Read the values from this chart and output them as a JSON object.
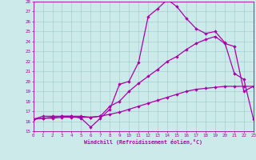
{
  "xlabel": "Windchill (Refroidissement éolien,°C)",
  "xlim": [
    0,
    23
  ],
  "ylim": [
    15,
    28
  ],
  "xticks": [
    0,
    1,
    2,
    3,
    4,
    5,
    6,
    7,
    8,
    9,
    10,
    11,
    12,
    13,
    14,
    15,
    16,
    17,
    18,
    19,
    20,
    21,
    22,
    23
  ],
  "yticks": [
    15,
    16,
    17,
    18,
    19,
    20,
    21,
    22,
    23,
    24,
    25,
    26,
    27,
    28
  ],
  "bg_color": "#cdeaea",
  "line_color": "#aa00aa",
  "grid_color": "#9ec8c8",
  "line1_x": [
    0,
    1,
    2,
    3,
    4,
    5,
    6,
    7,
    8,
    9,
    10,
    11,
    12,
    13,
    14,
    15,
    16,
    17,
    18,
    19,
    20,
    21,
    22,
    23
  ],
  "line1_y": [
    16.2,
    16.5,
    16.5,
    16.5,
    16.5,
    16.3,
    15.4,
    16.3,
    17.2,
    19.7,
    20.0,
    21.9,
    26.5,
    27.3,
    28.2,
    27.5,
    26.3,
    25.3,
    24.8,
    25.0,
    23.9,
    20.8,
    20.2,
    16.2
  ],
  "line2_x": [
    0,
    1,
    2,
    3,
    4,
    5,
    6,
    7,
    8,
    9,
    10,
    11,
    12,
    13,
    14,
    15,
    16,
    17,
    18,
    19,
    20,
    21,
    22,
    23
  ],
  "line2_y": [
    16.2,
    16.3,
    16.4,
    16.5,
    16.5,
    16.5,
    16.4,
    16.5,
    17.5,
    18.0,
    19.0,
    19.8,
    20.5,
    21.2,
    22.0,
    22.5,
    23.2,
    23.8,
    24.2,
    24.5,
    23.8,
    23.5,
    19.0,
    19.5
  ],
  "line3_x": [
    0,
    1,
    2,
    3,
    4,
    5,
    6,
    7,
    8,
    9,
    10,
    11,
    12,
    13,
    14,
    15,
    16,
    17,
    18,
    19,
    20,
    21,
    22,
    23
  ],
  "line3_y": [
    16.2,
    16.3,
    16.3,
    16.4,
    16.4,
    16.4,
    16.4,
    16.5,
    16.7,
    16.9,
    17.2,
    17.5,
    17.8,
    18.1,
    18.4,
    18.7,
    19.0,
    19.2,
    19.3,
    19.4,
    19.5,
    19.5,
    19.5,
    19.5
  ],
  "linewidth": 0.9,
  "markersize": 2.2
}
